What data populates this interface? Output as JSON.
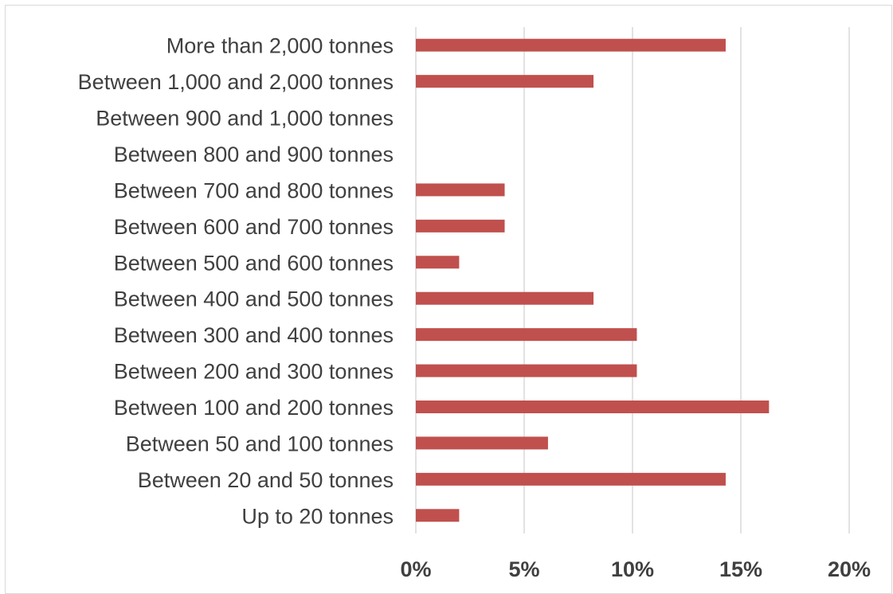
{
  "chart_data": {
    "type": "bar",
    "orientation": "horizontal",
    "categories": [
      "More than 2,000 tonnes",
      "Between 1,000 and 2,000 tonnes",
      "Between 900 and 1,000 tonnes",
      "Between 800 and 900 tonnes",
      "Between 700 and 800 tonnes",
      "Between 600 and 700 tonnes",
      "Between 500 and 600 tonnes",
      "Between 400 and 500 tonnes",
      "Between 300 and 400 tonnes",
      "Between 200 and 300 tonnes",
      "Between 100 and 200 tonnes",
      "Between 50 and 100 tonnes",
      "Between 20 and 50 tonnes",
      "Up to 20 tonnes"
    ],
    "values": [
      14.3,
      8.2,
      0,
      0,
      4.1,
      4.1,
      2.0,
      8.2,
      10.2,
      10.2,
      16.3,
      6.1,
      14.3,
      2.0
    ],
    "value_unit": "percent",
    "xlim": [
      0,
      20
    ],
    "xticks": [
      "0%",
      "5%",
      "10%",
      "15%",
      "20%"
    ],
    "title": "",
    "xlabel": "",
    "ylabel": "",
    "grid": "vertical",
    "legend": "none",
    "bar_color": "#c0504d",
    "grid_color": "#d9d9d9",
    "text_color": "#404040"
  }
}
